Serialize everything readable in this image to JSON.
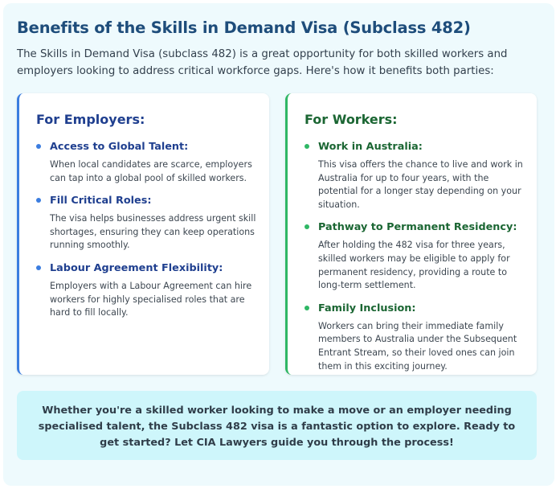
{
  "page": {
    "title": "Benefits of the Skills in Demand Visa (Subclass 482)",
    "intro": "The Skills in Demand Visa (subclass 482) is a great opportunity for both skilled workers and employers looking to address critical workforce gaps. Here's how it benefits both parties:"
  },
  "employers": {
    "heading": "For Employers:",
    "items": [
      {
        "title": "Access to Global Talent:",
        "description": "When local candidates are scarce, employers can tap into a global pool of skilled workers."
      },
      {
        "title": "Fill Critical Roles:",
        "description": "The visa helps businesses address urgent skill shortages, ensuring they can keep operations running smoothly."
      },
      {
        "title": "Labour Agreement Flexibility:",
        "description": "Employers with a Labour Agreement can hire workers for highly specialised roles that are hard to fill locally."
      }
    ]
  },
  "workers": {
    "heading": "For Workers:",
    "items": [
      {
        "title": "Work in Australia:",
        "description": "This visa offers the chance to live and work in Australia for up to four years, with the potential for a longer stay depending on your situation."
      },
      {
        "title": "Pathway to Permanent Residency:",
        "description": "After holding the 482 visa for three years, skilled workers may be eligible to apply for permanent residency, providing a route to long-term settlement."
      },
      {
        "title": "Family Inclusion:",
        "description": "Workers can bring their immediate family members to Australia under the Subsequent Entrant Stream, so their loved ones can join them in this exciting journey."
      }
    ]
  },
  "cta": {
    "text": "Whether you're a skilled worker looking to make a move or an employer needing specialised talent, the Subclass 482 visa is a fantastic option to explore. Ready to get started? Let CIA Lawyers guide you through the process!"
  },
  "colors": {
    "title": "#1e4d7b",
    "employers_accent": "#3b7de0",
    "workers_accent": "#2fb765",
    "cta_background": "#cef6fb"
  }
}
